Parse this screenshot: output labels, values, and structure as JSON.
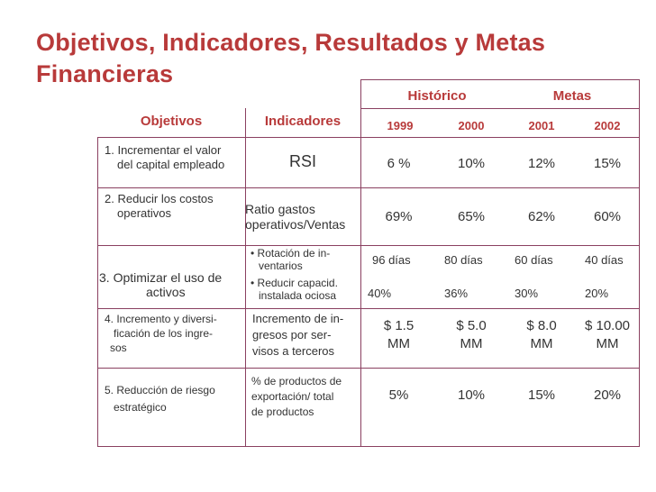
{
  "title_line1": "Objetivos, Indicadores, Resultados y Metas",
  "title_line2": "Financieras",
  "headers": {
    "historico": "Histórico",
    "metas": "Metas",
    "objetivos": "Objetivos",
    "indicadores": "Indicadores",
    "years": [
      "1999",
      "2000",
      "2001",
      "2002"
    ]
  },
  "rows": [
    {
      "objetivo": [
        "1. Incrementar el valor",
        "del capital empleado"
      ],
      "indicador": [
        "RSI"
      ],
      "values": [
        "6 %",
        "10%",
        "12%",
        "15%"
      ]
    },
    {
      "objetivo": [
        "2. Reducir los costos",
        "operativos"
      ],
      "indicador": [
        "Ratio gastos",
        "operativos/Ventas"
      ],
      "values": [
        "69%",
        "65%",
        "62%",
        "60%"
      ]
    },
    {
      "objetivo": [
        "3. Optimizar el uso de",
        "activos"
      ],
      "indicador": [
        "• Rotación de in-",
        "ventarios",
        "• Reducir capacid.",
        "instalada ociosa"
      ],
      "values_top": [
        "96 días",
        "80 días",
        "60 días",
        "40 días"
      ],
      "values_bottom": [
        "40%",
        "36%",
        "30%",
        "20%"
      ]
    },
    {
      "objetivo": [
        "4. Incremento y diversi-",
        "ficación de los ingre-",
        "sos"
      ],
      "indicador": [
        "Incremento de in-",
        "gresos por ser-",
        "visos a terceros"
      ],
      "values": [
        [
          "$ 1.5",
          "MM"
        ],
        [
          "$ 5.0",
          "MM"
        ],
        [
          "$ 8.0",
          "MM"
        ],
        [
          "$ 10.00",
          "MM"
        ]
      ]
    },
    {
      "objetivo": [
        "5. Reducción de riesgo",
        "estratégico"
      ],
      "indicador": [
        "% de productos de",
        "exportación/ total",
        "de productos"
      ],
      "values": [
        "5%",
        "10%",
        "15%",
        "20%"
      ]
    }
  ]
}
